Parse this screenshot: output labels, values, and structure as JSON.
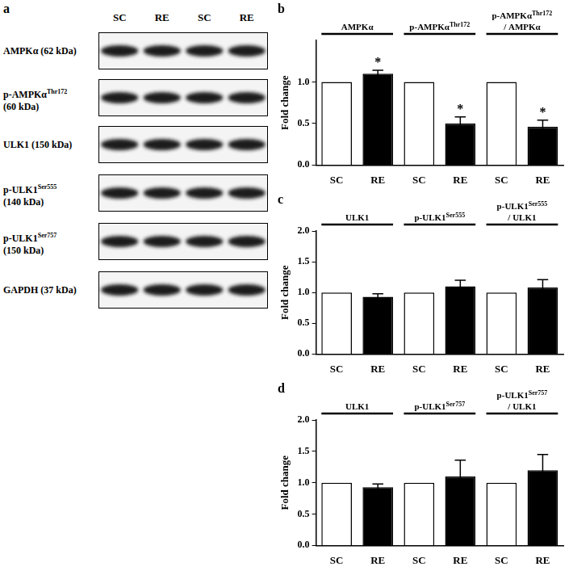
{
  "blot": {
    "panel_label": "a",
    "lanes": [
      "SC",
      "RE",
      "SC",
      "RE"
    ],
    "rows": [
      {
        "label": [
          [
            "AMPKα (62 kDa)"
          ]
        ]
      },
      {
        "label": [
          [
            "p-AMPKα",
            "Thr172"
          ],
          [
            "(60 kDa)"
          ]
        ]
      },
      {
        "label": [
          [
            "ULK1 (150 kDa)"
          ]
        ]
      },
      {
        "label": [
          [
            "p-ULK1",
            "Ser555"
          ],
          [
            "(140 kDa)"
          ]
        ]
      },
      {
        "label": [
          [
            "p-ULK1",
            "Ser757"
          ],
          [
            "(150 kDa)"
          ]
        ]
      },
      {
        "label": [
          [
            "GAPDH (37 kDa)"
          ]
        ]
      }
    ]
  },
  "chart_data": [
    {
      "type": "bar",
      "panel_label": "b",
      "categories": [
        "SC",
        "RE",
        "SC",
        "RE",
        "SC",
        "RE"
      ],
      "group_labels": [
        [
          [
            "AMPKα"
          ]
        ],
        [
          [
            "p-AMPKα",
            "Thr172"
          ]
        ],
        [
          [
            "p-AMPKα",
            "Thr172"
          ],
          [
            "/ AMPKα"
          ]
        ]
      ],
      "values": [
        1.0,
        1.1,
        1.0,
        0.5,
        1.0,
        0.46
      ],
      "errors": [
        0,
        0.04,
        0,
        0.08,
        0,
        0.08
      ],
      "annotations": [
        null,
        "*",
        null,
        "*",
        null,
        "*"
      ],
      "colors": [
        "#ffffff",
        "#000000",
        "#ffffff",
        "#000000",
        "#ffffff",
        "#000000"
      ],
      "y_label": "Fold change",
      "ylim": [
        0,
        1.5
      ],
      "yticks": [
        {
          "value": 0,
          "label": "0.0"
        },
        {
          "value": 0.5,
          "label": "0.5"
        },
        {
          "value": 1.0,
          "label": "1.0"
        }
      ],
      "grid": false
    },
    {
      "type": "bar",
      "panel_label": "c",
      "categories": [
        "SC",
        "RE",
        "SC",
        "RE",
        "SC",
        "RE"
      ],
      "group_labels": [
        [
          [
            "ULK1"
          ]
        ],
        [
          [
            "p-ULK1",
            "Ser555"
          ]
        ],
        [
          [
            "p-ULK1",
            "Ser555"
          ],
          [
            "/ ULK1"
          ]
        ]
      ],
      "values": [
        1.0,
        0.93,
        1.0,
        1.1,
        1.0,
        1.08
      ],
      "errors": [
        0,
        0.05,
        0,
        0.1,
        0,
        0.13
      ],
      "colors": [
        "#ffffff",
        "#000000",
        "#ffffff",
        "#000000",
        "#ffffff",
        "#000000"
      ],
      "y_label": "Fold change",
      "ylim": [
        0,
        2.0
      ],
      "yticks": [
        {
          "value": 0,
          "label": "0.0"
        },
        {
          "value": 0.5,
          "label": "0.5"
        },
        {
          "value": 1.0,
          "label": "1.0"
        },
        {
          "value": 1.5,
          "label": "1.5"
        },
        {
          "value": 2.0,
          "label": "2.0"
        }
      ],
      "grid": false
    },
    {
      "type": "bar",
      "panel_label": "d",
      "categories": [
        "SC",
        "RE",
        "SC",
        "RE",
        "SC",
        "RE"
      ],
      "group_labels": [
        [
          [
            "ULK1"
          ]
        ],
        [
          [
            "p-ULK1",
            "Ser757"
          ]
        ],
        [
          [
            "p-ULK1",
            "Ser757"
          ],
          [
            "/ ULK1"
          ]
        ]
      ],
      "values": [
        1.0,
        0.93,
        1.0,
        1.1,
        1.0,
        1.2
      ],
      "errors": [
        0,
        0.05,
        0,
        0.26,
        0,
        0.25
      ],
      "colors": [
        "#ffffff",
        "#000000",
        "#ffffff",
        "#000000",
        "#ffffff",
        "#000000"
      ],
      "y_label": "Fold change",
      "ylim": [
        0,
        2.0
      ],
      "yticks": [
        {
          "value": 0,
          "label": "0.0"
        },
        {
          "value": 0.5,
          "label": "0.5"
        },
        {
          "value": 1.0,
          "label": "1.0"
        },
        {
          "value": 1.5,
          "label": "1.5"
        },
        {
          "value": 2.0,
          "label": "2.0"
        }
      ],
      "grid": false
    }
  ]
}
